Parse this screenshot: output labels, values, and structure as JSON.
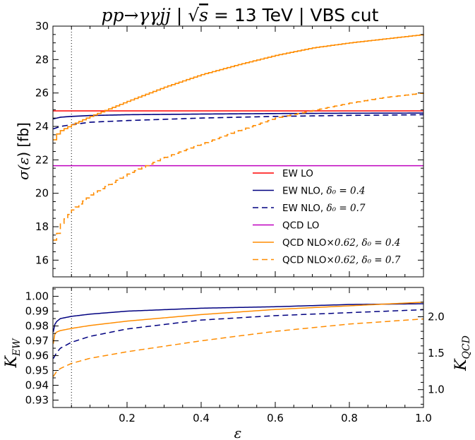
{
  "title": {
    "process": "pp→γγjj",
    "sep1": " | ",
    "sqrt": "√",
    "s": "s",
    "energy": " = 13 TeV | VBS cut"
  },
  "chart_data": [
    {
      "id": "top",
      "type": "line",
      "ylabel_sigma": "σ(",
      "ylabel_eps": "ε",
      "ylabel_unit": ") [fb]",
      "xlim": [
        0.0,
        1.0
      ],
      "ylim": [
        15.0,
        30.0
      ],
      "yticks": [
        16,
        18,
        20,
        22,
        24,
        26,
        28,
        30
      ],
      "ytick_labels": [
        "16",
        "18",
        "20",
        "22",
        "24",
        "26",
        "28",
        "30"
      ],
      "vline": 0.05,
      "legend_position": "lower-right",
      "series": [
        {
          "key": "ew_lo",
          "name": "EW LO",
          "color": "#ff0000",
          "dash": "",
          "kind": "const",
          "value": 24.93
        },
        {
          "key": "ew_nlo_04",
          "name": "EW NLO, ",
          "math": "δ₀ = 0.4",
          "color": "#000080",
          "dash": "",
          "kind": "sat",
          "points": [
            [
              0.001,
              24.45
            ],
            [
              0.02,
              24.55
            ],
            [
              0.05,
              24.6
            ],
            [
              0.1,
              24.65
            ],
            [
              0.2,
              24.7
            ],
            [
              0.4,
              24.74
            ],
            [
              0.6,
              24.77
            ],
            [
              0.8,
              24.79
            ],
            [
              1.0,
              24.8
            ]
          ]
        },
        {
          "key": "ew_nlo_07",
          "name": "EW NLO, ",
          "math": "δ₀ = 0.7",
          "color": "#000080",
          "dash": "8,5",
          "kind": "sat",
          "points": [
            [
              0.001,
              23.85
            ],
            [
              0.02,
              24.0
            ],
            [
              0.05,
              24.1
            ],
            [
              0.1,
              24.25
            ],
            [
              0.2,
              24.35
            ],
            [
              0.4,
              24.5
            ],
            [
              0.6,
              24.6
            ],
            [
              0.8,
              24.66
            ],
            [
              1.0,
              24.7
            ]
          ]
        },
        {
          "key": "qcd_lo",
          "name": "QCD LO",
          "color": "#bf00bf",
          "dash": "",
          "kind": "const",
          "value": 21.65
        },
        {
          "key": "qcd_nlo_04",
          "name": "QCD NLO",
          "math": "×0.62, δ₀ = 0.4",
          "color": "#ff8c00",
          "dash": "",
          "kind": "step",
          "points": [
            [
              0.001,
              23.2
            ],
            [
              0.01,
              23.55
            ],
            [
              0.02,
              23.75
            ],
            [
              0.05,
              24.1
            ],
            [
              0.1,
              24.6
            ],
            [
              0.2,
              25.5
            ],
            [
              0.3,
              26.35
            ],
            [
              0.4,
              27.1
            ],
            [
              0.5,
              27.7
            ],
            [
              0.6,
              28.25
            ],
            [
              0.7,
              28.7
            ],
            [
              0.8,
              29.0
            ],
            [
              0.9,
              29.25
            ],
            [
              1.0,
              29.5
            ]
          ]
        },
        {
          "key": "qcd_nlo_07",
          "name": "QCD NLO",
          "math": "×0.62, δ₀ = 0.7",
          "color": "#ff8c00",
          "dash": "8,5",
          "kind": "step",
          "points": [
            [
              0.001,
              17.2
            ],
            [
              0.01,
              17.6
            ],
            [
              0.02,
              18.2
            ],
            [
              0.05,
              19.0
            ],
            [
              0.1,
              19.9
            ],
            [
              0.2,
              21.15
            ],
            [
              0.3,
              22.15
            ],
            [
              0.4,
              22.95
            ],
            [
              0.5,
              23.75
            ],
            [
              0.6,
              24.5
            ],
            [
              0.7,
              24.95
            ],
            [
              0.8,
              25.4
            ],
            [
              0.9,
              25.75
            ],
            [
              1.0,
              26.0
            ]
          ]
        }
      ]
    },
    {
      "id": "bottom",
      "type": "line",
      "xlabel": "ε",
      "ylabel_left_main": "K",
      "ylabel_left_sub": "EW",
      "ylabel_right_main": "K",
      "ylabel_right_sub": "QCD",
      "xlim": [
        0.0,
        1.0
      ],
      "ylim_left": [
        0.925,
        1.006
      ],
      "ylim_right": [
        0.755,
        2.402
      ],
      "xticks": [
        0.2,
        0.4,
        0.6,
        0.8,
        1.0
      ],
      "xtick_labels": [
        "0.2",
        "0.4",
        "0.6",
        "0.8",
        "1.0"
      ],
      "yticks_left": [
        0.93,
        0.94,
        0.95,
        0.96,
        0.97,
        0.98,
        0.99,
        1.0
      ],
      "ytick_labels_left": [
        "0.93",
        "0.94",
        "0.95",
        "0.96",
        "0.97",
        "0.98",
        "0.99",
        "1.00"
      ],
      "yticks_right": [
        1.0,
        1.5,
        2.0
      ],
      "ytick_labels_right": [
        "1.0",
        "1.5",
        "2.0"
      ],
      "vline": 0.05,
      "series": [
        {
          "key": "kew_04",
          "color": "#000080",
          "dash": "",
          "axis": "left",
          "points": [
            [
              0.001,
              0.976
            ],
            [
              0.005,
              0.981
            ],
            [
              0.01,
              0.983
            ],
            [
              0.02,
              0.985
            ],
            [
              0.05,
              0.9865
            ],
            [
              0.1,
              0.988
            ],
            [
              0.2,
              0.99
            ],
            [
              0.4,
              0.992
            ],
            [
              0.6,
              0.993
            ],
            [
              0.8,
              0.9945
            ],
            [
              1.0,
              0.995
            ]
          ]
        },
        {
          "key": "kew_07",
          "color": "#000080",
          "dash": "8,5",
          "axis": "left",
          "points": [
            [
              0.001,
              0.958
            ],
            [
              0.01,
              0.962
            ],
            [
              0.02,
              0.965
            ],
            [
              0.05,
              0.969
            ],
            [
              0.1,
              0.973
            ],
            [
              0.2,
              0.978
            ],
            [
              0.4,
              0.984
            ],
            [
              0.6,
              0.987
            ],
            [
              0.8,
              0.989
            ],
            [
              1.0,
              0.991
            ]
          ]
        },
        {
          "key": "kqcd_04",
          "color": "#ff8c00",
          "dash": "",
          "axis": "right",
          "points": [
            [
              0.001,
              1.63
            ],
            [
              0.005,
              1.76
            ],
            [
              0.01,
              1.79
            ],
            [
              0.02,
              1.81
            ],
            [
              0.05,
              1.84
            ],
            [
              0.1,
              1.88
            ],
            [
              0.2,
              1.94
            ],
            [
              0.4,
              2.03
            ],
            [
              0.6,
              2.1
            ],
            [
              0.8,
              2.15
            ],
            [
              1.0,
              2.2
            ]
          ]
        },
        {
          "key": "kqcd_07",
          "color": "#ff8c00",
          "dash": "8,5",
          "axis": "right",
          "points": [
            [
              0.001,
              1.18
            ],
            [
              0.01,
              1.25
            ],
            [
              0.02,
              1.29
            ],
            [
              0.05,
              1.36
            ],
            [
              0.1,
              1.43
            ],
            [
              0.2,
              1.52
            ],
            [
              0.4,
              1.67
            ],
            [
              0.6,
              1.8
            ],
            [
              0.8,
              1.9
            ],
            [
              1.0,
              1.97
            ]
          ]
        }
      ]
    }
  ]
}
